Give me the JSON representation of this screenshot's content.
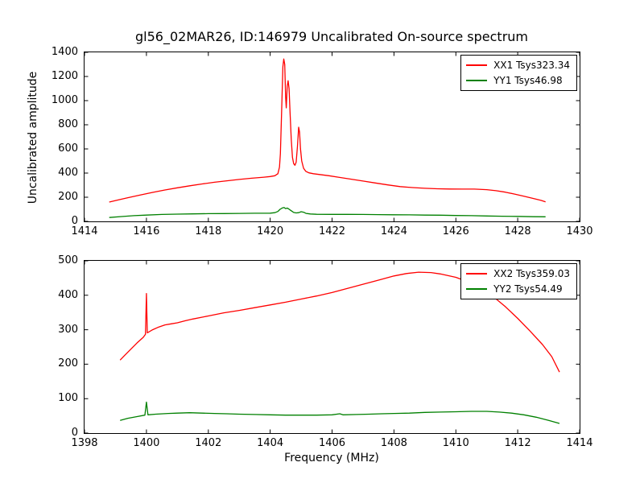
{
  "figure": {
    "title": "gl56_02MAR26, ID:146979 Uncalibrated On-source spectrum",
    "ylabel": "Uncalibrated amplitude",
    "xlabel": "Frequency (MHz)",
    "background_color": "#ffffff",
    "frame_color": "#000000"
  },
  "chart_data": [
    {
      "type": "line",
      "subplot": "top",
      "xlim": [
        1414,
        1430
      ],
      "ylim": [
        0,
        1400
      ],
      "xticks": [
        1414,
        1416,
        1418,
        1420,
        1422,
        1424,
        1426,
        1428,
        1430
      ],
      "yticks": [
        0,
        200,
        400,
        600,
        800,
        1000,
        1200,
        1400
      ],
      "grid": false,
      "legend_position": "upper right",
      "series": [
        {
          "name": "XX1",
          "label": "XX1 Tsys323.34",
          "color": "#ff0000",
          "points": [
            [
              1414.8,
              160
            ],
            [
              1415.1,
              178
            ],
            [
              1415.4,
              196
            ],
            [
              1415.8,
              218
            ],
            [
              1416.2,
              240
            ],
            [
              1416.6,
              260
            ],
            [
              1417.0,
              278
            ],
            [
              1417.4,
              295
            ],
            [
              1417.8,
              310
            ],
            [
              1418.2,
              324
            ],
            [
              1418.6,
              336
            ],
            [
              1419.0,
              347
            ],
            [
              1419.4,
              357
            ],
            [
              1419.8,
              366
            ],
            [
              1420.0,
              371
            ],
            [
              1420.15,
              378
            ],
            [
              1420.25,
              395
            ],
            [
              1420.3,
              450
            ],
            [
              1420.33,
              560
            ],
            [
              1420.37,
              900
            ],
            [
              1420.41,
              1280
            ],
            [
              1420.44,
              1345
            ],
            [
              1420.47,
              1300
            ],
            [
              1420.5,
              1030
            ],
            [
              1420.52,
              940
            ],
            [
              1420.55,
              1120
            ],
            [
              1420.58,
              1165
            ],
            [
              1420.61,
              1100
            ],
            [
              1420.64,
              920
            ],
            [
              1420.68,
              680
            ],
            [
              1420.72,
              530
            ],
            [
              1420.76,
              478
            ],
            [
              1420.8,
              465
            ],
            [
              1420.84,
              490
            ],
            [
              1420.88,
              620
            ],
            [
              1420.92,
              780
            ],
            [
              1420.95,
              740
            ],
            [
              1420.98,
              600
            ],
            [
              1421.02,
              500
            ],
            [
              1421.08,
              440
            ],
            [
              1421.15,
              415
            ],
            [
              1421.25,
              402
            ],
            [
              1421.4,
              395
            ],
            [
              1421.6,
              388
            ],
            [
              1421.9,
              378
            ],
            [
              1422.2,
              366
            ],
            [
              1422.6,
              350
            ],
            [
              1423.0,
              334
            ],
            [
              1423.4,
              318
            ],
            [
              1423.8,
              302
            ],
            [
              1424.2,
              288
            ],
            [
              1424.6,
              280
            ],
            [
              1425.0,
              274
            ],
            [
              1425.4,
              270
            ],
            [
              1425.8,
              268
            ],
            [
              1426.2,
              267
            ],
            [
              1426.6,
              267
            ],
            [
              1427.0,
              263
            ],
            [
              1427.3,
              254
            ],
            [
              1427.6,
              242
            ],
            [
              1427.9,
              226
            ],
            [
              1428.2,
              208
            ],
            [
              1428.5,
              190
            ],
            [
              1428.75,
              174
            ],
            [
              1428.9,
              162
            ]
          ]
        },
        {
          "name": "YY1",
          "label": "YY1 Tsys46.98",
          "color": "#008000",
          "points": [
            [
              1414.8,
              32
            ],
            [
              1415.2,
              40
            ],
            [
              1415.6,
              47
            ],
            [
              1416.0,
              52
            ],
            [
              1416.5,
              57
            ],
            [
              1417.0,
              60
            ],
            [
              1417.5,
              62
            ],
            [
              1418.0,
              64
            ],
            [
              1418.5,
              65
            ],
            [
              1419.0,
              66
            ],
            [
              1419.5,
              67
            ],
            [
              1420.0,
              68
            ],
            [
              1420.15,
              72
            ],
            [
              1420.25,
              82
            ],
            [
              1420.32,
              100
            ],
            [
              1420.4,
              112
            ],
            [
              1420.45,
              115
            ],
            [
              1420.5,
              106
            ],
            [
              1420.55,
              110
            ],
            [
              1420.6,
              103
            ],
            [
              1420.68,
              88
            ],
            [
              1420.76,
              74
            ],
            [
              1420.84,
              70
            ],
            [
              1420.92,
              72
            ],
            [
              1421.0,
              80
            ],
            [
              1421.08,
              76
            ],
            [
              1421.16,
              66
            ],
            [
              1421.3,
              61
            ],
            [
              1421.5,
              59
            ],
            [
              1422.0,
              58
            ],
            [
              1422.5,
              58
            ],
            [
              1423.0,
              57
            ],
            [
              1423.5,
              56
            ],
            [
              1424.0,
              55
            ],
            [
              1424.5,
              54
            ],
            [
              1425.0,
              52
            ],
            [
              1425.5,
              51
            ],
            [
              1426.0,
              49
            ],
            [
              1426.5,
              47
            ],
            [
              1427.0,
              45
            ],
            [
              1427.5,
              43
            ],
            [
              1428.0,
              41
            ],
            [
              1428.5,
              39
            ],
            [
              1428.9,
              38
            ]
          ]
        }
      ]
    },
    {
      "type": "line",
      "subplot": "bottom",
      "xlim": [
        1398,
        1414
      ],
      "ylim": [
        0,
        500
      ],
      "xticks": [
        1398,
        1400,
        1402,
        1404,
        1406,
        1408,
        1410,
        1412,
        1414
      ],
      "yticks": [
        0,
        100,
        200,
        300,
        400,
        500
      ],
      "grid": false,
      "legend_position": "upper right",
      "series": [
        {
          "name": "XX2",
          "label": "XX2 Tsys359.03",
          "color": "#ff0000",
          "points": [
            [
              1399.15,
              212
            ],
            [
              1399.3,
              226
            ],
            [
              1399.5,
              244
            ],
            [
              1399.7,
              262
            ],
            [
              1399.9,
              278
            ],
            [
              1399.97,
              287
            ],
            [
              1400.0,
              405
            ],
            [
              1400.03,
              291
            ],
            [
              1400.2,
              300
            ],
            [
              1400.4,
              308
            ],
            [
              1400.6,
              314
            ],
            [
              1400.8,
              317
            ],
            [
              1401.0,
              320
            ],
            [
              1401.25,
              326
            ],
            [
              1401.5,
              331
            ],
            [
              1402.0,
              340
            ],
            [
              1402.5,
              349
            ],
            [
              1403.0,
              356
            ],
            [
              1403.5,
              364
            ],
            [
              1404.0,
              372
            ],
            [
              1404.5,
              380
            ],
            [
              1405.0,
              389
            ],
            [
              1405.5,
              398
            ],
            [
              1406.0,
              408
            ],
            [
              1406.5,
              420
            ],
            [
              1407.0,
              432
            ],
            [
              1407.5,
              444
            ],
            [
              1408.0,
              456
            ],
            [
              1408.4,
              463
            ],
            [
              1408.8,
              467
            ],
            [
              1409.2,
              466
            ],
            [
              1409.5,
              462
            ],
            [
              1410.0,
              452
            ],
            [
              1410.4,
              439
            ],
            [
              1410.8,
              421
            ],
            [
              1411.2,
              397
            ],
            [
              1411.6,
              367
            ],
            [
              1412.0,
              333
            ],
            [
              1412.4,
              296
            ],
            [
              1412.8,
              257
            ],
            [
              1413.1,
              222
            ],
            [
              1413.35,
              177
            ]
          ]
        },
        {
          "name": "YY2",
          "label": "YY2 Tsys54.49",
          "color": "#008000",
          "points": [
            [
              1399.15,
              37
            ],
            [
              1399.4,
              43
            ],
            [
              1399.7,
              48
            ],
            [
              1399.95,
              52
            ],
            [
              1400.0,
              90
            ],
            [
              1400.05,
              53
            ],
            [
              1400.3,
              55
            ],
            [
              1400.7,
              57
            ],
            [
              1401.0,
              58
            ],
            [
              1401.4,
              59
            ],
            [
              1401.8,
              58
            ],
            [
              1402.2,
              57
            ],
            [
              1402.6,
              56
            ],
            [
              1403.0,
              55
            ],
            [
              1403.5,
              54
            ],
            [
              1404.0,
              53
            ],
            [
              1404.5,
              52
            ],
            [
              1405.0,
              52
            ],
            [
              1405.5,
              52
            ],
            [
              1406.0,
              53
            ],
            [
              1406.25,
              56
            ],
            [
              1406.35,
              53
            ],
            [
              1406.8,
              54
            ],
            [
              1407.2,
              55
            ],
            [
              1407.6,
              56
            ],
            [
              1408.0,
              57
            ],
            [
              1408.5,
              58
            ],
            [
              1409.0,
              60
            ],
            [
              1409.5,
              61
            ],
            [
              1410.0,
              62
            ],
            [
              1410.5,
              63
            ],
            [
              1411.0,
              63
            ],
            [
              1411.4,
              61
            ],
            [
              1411.8,
              58
            ],
            [
              1412.2,
              53
            ],
            [
              1412.6,
              46
            ],
            [
              1413.0,
              37
            ],
            [
              1413.35,
              28
            ]
          ]
        }
      ]
    }
  ]
}
